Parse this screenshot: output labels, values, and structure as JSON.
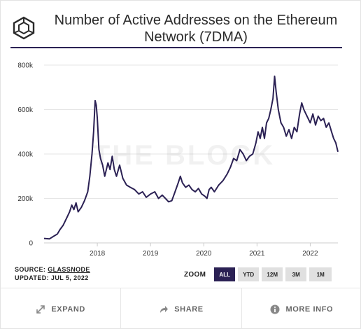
{
  "header": {
    "title_line1": "Number of Active Addresses on the Ethereum",
    "title_line2": "Network (7DMA)",
    "logo_icon": "theblock-cube-icon"
  },
  "watermark": "THE BLOCK",
  "source": {
    "label": "SOURCE: ",
    "name": "GLASSNODE",
    "updated": "UPDATED: JUL 5, 2022"
  },
  "zoom": {
    "label": "ZOOM",
    "options": [
      "ALL",
      "YTD",
      "12M",
      "3M",
      "1M"
    ],
    "selected": "ALL"
  },
  "footer": {
    "expand": "EXPAND",
    "share": "SHARE",
    "more_info": "MORE INFO",
    "icons": [
      "expand-arrows-icon",
      "share-arrow-icon",
      "info-icon"
    ]
  },
  "colors": {
    "line": "#2b2154",
    "accent": "#2b2154",
    "grid": "#e6e6e6"
  },
  "chart_data": {
    "type": "line",
    "title": "Number of Active Addresses on the Ethereum Network (7DMA)",
    "xlabel": "",
    "ylabel": "",
    "x_range": [
      2017.0,
      2022.52
    ],
    "ylim": [
      0,
      800000
    ],
    "y_ticks": [
      0,
      200000,
      400000,
      600000,
      800000
    ],
    "y_tick_labels": [
      "0",
      "200k",
      "400k",
      "600k",
      "800k"
    ],
    "x_ticks": [
      2018,
      2019,
      2020,
      2021,
      2022
    ],
    "x_tick_labels": [
      "2018",
      "2019",
      "2020",
      "2021",
      "2022"
    ],
    "grid": "horizontal",
    "series": [
      {
        "name": "",
        "points": [
          [
            2017.0,
            20000
          ],
          [
            2017.1,
            18000
          ],
          [
            2017.18,
            30000
          ],
          [
            2017.25,
            40000
          ],
          [
            2017.3,
            60000
          ],
          [
            2017.36,
            80000
          ],
          [
            2017.42,
            110000
          ],
          [
            2017.48,
            140000
          ],
          [
            2017.52,
            170000
          ],
          [
            2017.56,
            150000
          ],
          [
            2017.6,
            180000
          ],
          [
            2017.64,
            140000
          ],
          [
            2017.7,
            160000
          ],
          [
            2017.76,
            190000
          ],
          [
            2017.82,
            230000
          ],
          [
            2017.86,
            300000
          ],
          [
            2017.9,
            400000
          ],
          [
            2017.93,
            500000
          ],
          [
            2017.96,
            640000
          ],
          [
            2017.98,
            620000
          ],
          [
            2018.0,
            560000
          ],
          [
            2018.03,
            420000
          ],
          [
            2018.06,
            380000
          ],
          [
            2018.1,
            350000
          ],
          [
            2018.14,
            300000
          ],
          [
            2018.2,
            360000
          ],
          [
            2018.24,
            330000
          ],
          [
            2018.28,
            390000
          ],
          [
            2018.32,
            330000
          ],
          [
            2018.36,
            300000
          ],
          [
            2018.42,
            350000
          ],
          [
            2018.48,
            290000
          ],
          [
            2018.55,
            260000
          ],
          [
            2018.62,
            250000
          ],
          [
            2018.7,
            240000
          ],
          [
            2018.78,
            220000
          ],
          [
            2018.85,
            230000
          ],
          [
            2018.92,
            205000
          ],
          [
            2019.0,
            220000
          ],
          [
            2019.08,
            230000
          ],
          [
            2019.15,
            200000
          ],
          [
            2019.22,
            215000
          ],
          [
            2019.28,
            200000
          ],
          [
            2019.34,
            185000
          ],
          [
            2019.4,
            190000
          ],
          [
            2019.46,
            230000
          ],
          [
            2019.52,
            270000
          ],
          [
            2019.56,
            300000
          ],
          [
            2019.6,
            270000
          ],
          [
            2019.66,
            250000
          ],
          [
            2019.72,
            260000
          ],
          [
            2019.78,
            240000
          ],
          [
            2019.84,
            230000
          ],
          [
            2019.9,
            245000
          ],
          [
            2019.96,
            220000
          ],
          [
            2020.02,
            210000
          ],
          [
            2020.06,
            200000
          ],
          [
            2020.1,
            240000
          ],
          [
            2020.14,
            250000
          ],
          [
            2020.2,
            230000
          ],
          [
            2020.28,
            260000
          ],
          [
            2020.36,
            280000
          ],
          [
            2020.44,
            310000
          ],
          [
            2020.5,
            340000
          ],
          [
            2020.56,
            380000
          ],
          [
            2020.62,
            370000
          ],
          [
            2020.68,
            420000
          ],
          [
            2020.74,
            400000
          ],
          [
            2020.8,
            370000
          ],
          [
            2020.86,
            390000
          ],
          [
            2020.92,
            400000
          ],
          [
            2020.98,
            450000
          ],
          [
            2021.02,
            500000
          ],
          [
            2021.06,
            470000
          ],
          [
            2021.1,
            520000
          ],
          [
            2021.14,
            470000
          ],
          [
            2021.18,
            540000
          ],
          [
            2021.22,
            560000
          ],
          [
            2021.26,
            600000
          ],
          [
            2021.3,
            650000
          ],
          [
            2021.33,
            750000
          ],
          [
            2021.36,
            680000
          ],
          [
            2021.4,
            600000
          ],
          [
            2021.45,
            540000
          ],
          [
            2021.5,
            520000
          ],
          [
            2021.55,
            480000
          ],
          [
            2021.6,
            510000
          ],
          [
            2021.65,
            470000
          ],
          [
            2021.7,
            520000
          ],
          [
            2021.75,
            500000
          ],
          [
            2021.8,
            580000
          ],
          [
            2021.84,
            630000
          ],
          [
            2021.88,
            600000
          ],
          [
            2021.92,
            580000
          ],
          [
            2021.96,
            560000
          ],
          [
            2022.0,
            540000
          ],
          [
            2022.05,
            580000
          ],
          [
            2022.1,
            530000
          ],
          [
            2022.15,
            570000
          ],
          [
            2022.2,
            550000
          ],
          [
            2022.25,
            560000
          ],
          [
            2022.3,
            520000
          ],
          [
            2022.35,
            540000
          ],
          [
            2022.4,
            500000
          ],
          [
            2022.44,
            470000
          ],
          [
            2022.48,
            450000
          ],
          [
            2022.52,
            410000
          ]
        ]
      }
    ]
  }
}
